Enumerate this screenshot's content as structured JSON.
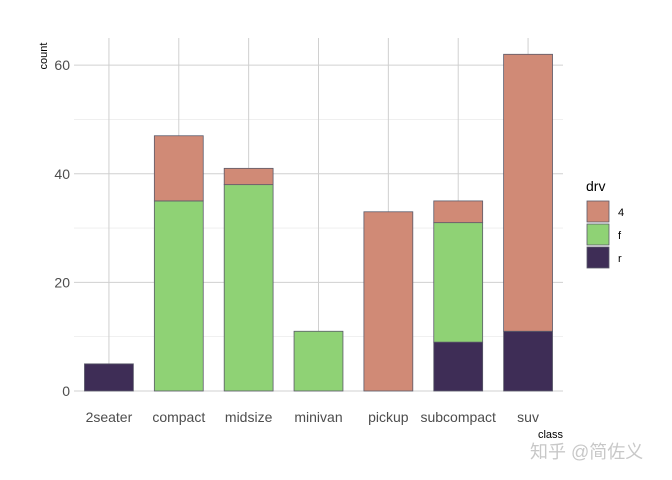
{
  "chart_data": {
    "type": "bar",
    "stacked": true,
    "xlabel": "class",
    "ylabel": "count",
    "categories": [
      "2seater",
      "compact",
      "midsize",
      "minivan",
      "pickup",
      "subcompact",
      "suv"
    ],
    "series": [
      {
        "name": "4",
        "color": "#d08a76",
        "values": [
          0,
          12,
          3,
          0,
          33,
          4,
          51
        ]
      },
      {
        "name": "f",
        "color": "#8fd275",
        "values": [
          0,
          35,
          38,
          11,
          0,
          22,
          0
        ]
      },
      {
        "name": "r",
        "color": "#3e2d56",
        "values": [
          5,
          0,
          0,
          0,
          0,
          9,
          11
        ]
      }
    ],
    "ylim": [
      0,
      65
    ],
    "yticks": [
      0,
      20,
      40,
      60
    ],
    "grid": true,
    "legend": {
      "title": "drv",
      "position": "right"
    }
  },
  "watermark": "知乎 @简佐义"
}
